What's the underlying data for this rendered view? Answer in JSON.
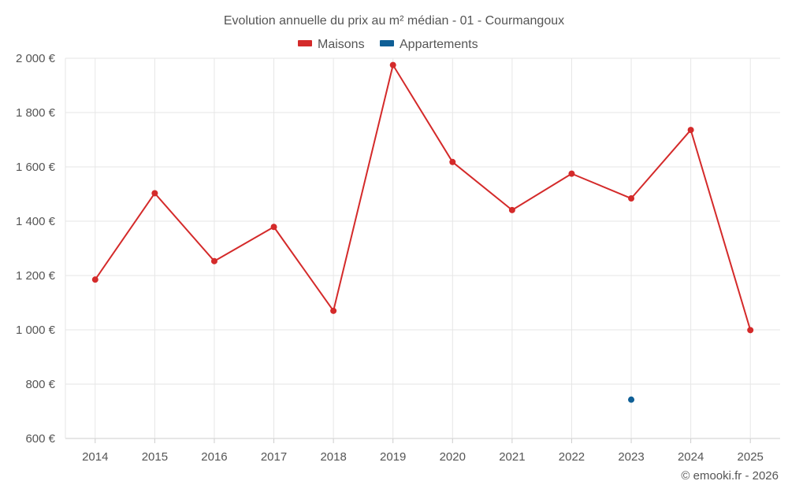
{
  "chart_data": {
    "type": "line",
    "title": "Evolution annuelle du prix au m² médian - 01 - Courmangoux",
    "categories": [
      "2014",
      "2015",
      "2016",
      "2017",
      "2018",
      "2019",
      "2020",
      "2021",
      "2022",
      "2023",
      "2024",
      "2025"
    ],
    "series": [
      {
        "name": "Maisons",
        "color": "#d42a2a",
        "values": [
          1185,
          1503,
          1253,
          1379,
          1070,
          1975,
          1618,
          1441,
          1575,
          1484,
          1736,
          999
        ]
      },
      {
        "name": "Appartements",
        "color": "#0f5f96",
        "values": [
          null,
          null,
          null,
          null,
          null,
          null,
          null,
          null,
          null,
          743,
          null,
          null
        ]
      }
    ],
    "ylim": [
      600,
      2000
    ],
    "yticks": [
      600,
      800,
      1000,
      1200,
      1400,
      1600,
      1800,
      2000
    ],
    "ytick_labels": [
      "600 €",
      "800 €",
      "1 000 €",
      "1 200 €",
      "1 400 €",
      "1 600 €",
      "1 800 €",
      "2 000 €"
    ],
    "grid": true,
    "legend_position": "top-center"
  },
  "credit": "© emooki.fr - 2026"
}
